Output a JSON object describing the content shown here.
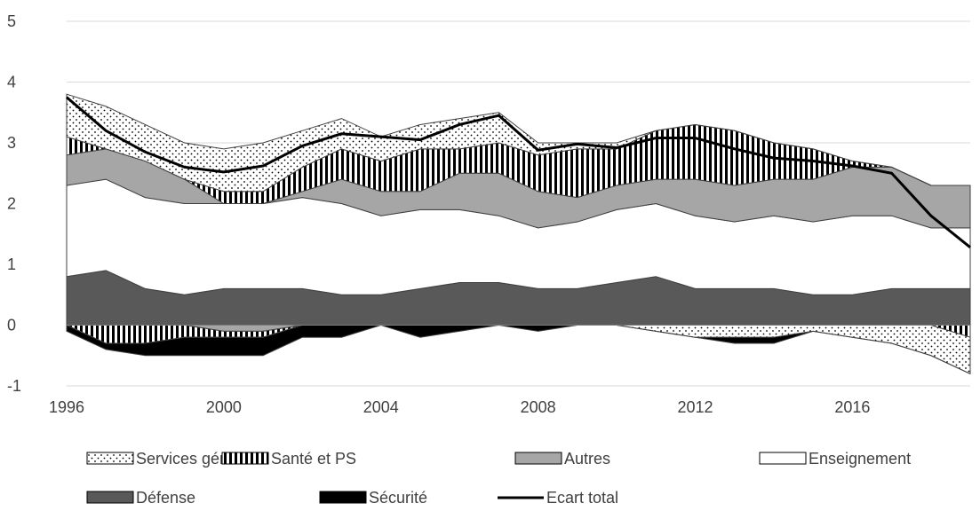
{
  "chart_data": {
    "type": "area",
    "title": "",
    "xlabel": "",
    "ylabel": "",
    "x": [
      1996,
      1997,
      1998,
      1999,
      2000,
      2001,
      2002,
      2003,
      2004,
      2005,
      2006,
      2007,
      2008,
      2009,
      2010,
      2011,
      2012,
      2013,
      2014,
      2015,
      2016,
      2017,
      2018,
      2019
    ],
    "xlim": [
      1996,
      2019
    ],
    "ylim": [
      -1,
      5
    ],
    "x_tick_labels": [
      "1996",
      "2000",
      "2004",
      "2008",
      "2012",
      "2016"
    ],
    "y_tick_labels": [
      "-1",
      "0",
      "1",
      "2",
      "3",
      "4",
      "5"
    ],
    "grid": "horizontal",
    "legend_position": "bottom",
    "series": [
      {
        "name": "Services généraux",
        "values": [
          0.7,
          0.7,
          0.6,
          0.6,
          0.7,
          0.8,
          0.6,
          0.5,
          0.4,
          0.4,
          0.5,
          0.5,
          0.2,
          0.1,
          0.1,
          0.0,
          0.0,
          0.0,
          0.0,
          0.0,
          0.0,
          0.0,
          0.0,
          0.0
        ],
        "neg_values": [
          0,
          0,
          0,
          0,
          0,
          0,
          0,
          0,
          0,
          0,
          0,
          0,
          0,
          0,
          0,
          -0.1,
          -0.2,
          -0.2,
          -0.2,
          -0.1,
          -0.2,
          -0.3,
          -0.5,
          -0.6
        ]
      },
      {
        "name": "Santé et PS",
        "values": [
          0.3,
          0.0,
          0.0,
          0.0,
          0.2,
          0.2,
          0.4,
          0.5,
          0.5,
          0.7,
          0.4,
          0.5,
          0.6,
          0.8,
          0.6,
          0.8,
          0.9,
          0.9,
          0.6,
          0.5,
          0.1,
          0.0,
          0.0,
          0.0
        ],
        "neg_values": [
          0,
          -0.3,
          -0.3,
          -0.2,
          -0.1,
          -0.1,
          0,
          0,
          0,
          0,
          0,
          0,
          0,
          0,
          0,
          0,
          0,
          0,
          0,
          0,
          0,
          0,
          0,
          -0.2
        ]
      },
      {
        "name": "Autres",
        "values": [
          0.5,
          0.5,
          0.6,
          0.4,
          0.0,
          0.0,
          0.1,
          0.4,
          0.4,
          0.3,
          0.6,
          0.7,
          0.6,
          0.4,
          0.4,
          0.4,
          0.6,
          0.6,
          0.6,
          0.7,
          0.8,
          0.8,
          0.7,
          0.7
        ],
        "neg_values": [
          0,
          0,
          0,
          0,
          -0.1,
          -0.1,
          0,
          0,
          0,
          0,
          0,
          0,
          0,
          0,
          0,
          0,
          0,
          0,
          0,
          0,
          0,
          0,
          0,
          0
        ]
      },
      {
        "name": "Enseignement",
        "values": [
          1.5,
          1.5,
          1.5,
          1.5,
          1.4,
          1.4,
          1.5,
          1.5,
          1.3,
          1.3,
          1.2,
          1.1,
          1.0,
          1.1,
          1.2,
          1.2,
          1.2,
          1.1,
          1.2,
          1.2,
          1.3,
          1.2,
          1.0,
          1.0
        ],
        "neg_values": [
          0,
          0,
          0,
          0,
          0,
          0,
          0,
          0,
          0,
          0,
          0,
          0,
          0,
          0,
          0,
          0,
          0,
          0,
          0,
          0,
          0,
          0,
          0,
          0
        ]
      },
      {
        "name": "Défense",
        "values": [
          0.8,
          0.9,
          0.6,
          0.5,
          0.6,
          0.6,
          0.6,
          0.5,
          0.5,
          0.6,
          0.7,
          0.7,
          0.6,
          0.6,
          0.7,
          0.8,
          0.6,
          0.6,
          0.6,
          0.5,
          0.5,
          0.6,
          0.6,
          0.6
        ],
        "neg_values": [
          0,
          0,
          0,
          0,
          0,
          0,
          0,
          0,
          0,
          0,
          0,
          0,
          0,
          0,
          0,
          0,
          0,
          0,
          0,
          0,
          0,
          0,
          0,
          0
        ]
      },
      {
        "name": "Sécurité",
        "values": [
          0,
          0,
          0,
          0,
          0,
          0,
          0,
          0,
          0,
          0,
          0,
          0,
          0,
          0,
          0,
          0,
          0,
          0,
          0,
          0,
          0,
          0,
          0,
          0
        ],
        "neg_values": [
          -0.1,
          -0.1,
          -0.2,
          -0.3,
          -0.3,
          -0.3,
          -0.2,
          -0.2,
          0,
          -0.2,
          -0.1,
          0,
          -0.1,
          0,
          0,
          0,
          0,
          -0.1,
          -0.1,
          0,
          0,
          0,
          0,
          0
        ]
      },
      {
        "name": "Ecart total",
        "type": "line",
        "values": [
          3.75,
          3.2,
          2.85,
          2.6,
          2.52,
          2.62,
          2.95,
          3.15,
          3.1,
          3.05,
          3.3,
          3.45,
          2.88,
          2.98,
          2.92,
          3.08,
          3.08,
          2.9,
          2.75,
          2.7,
          2.62,
          2.5,
          1.8,
          1.28
        ]
      }
    ],
    "colors": {
      "Services généraux": "#ffffff",
      "Santé et PS": "#ffffff",
      "Autres": "#a6a6a6",
      "Enseignement": "#ffffff",
      "Défense": "#595959",
      "Sécurité": "#000000",
      "Ecart total": "#000000"
    },
    "legend": [
      {
        "label": "Services généraux",
        "pattern": "dots"
      },
      {
        "label": "Santé et PS",
        "pattern": "vstripes"
      },
      {
        "label": "Autres",
        "pattern": "solid-lightgray"
      },
      {
        "label": "Enseignement",
        "pattern": "solid-white"
      },
      {
        "label": "Défense",
        "pattern": "solid-darkgray"
      },
      {
        "label": "Sécurité",
        "pattern": "solid-black"
      },
      {
        "label": "Ecart total",
        "pattern": "line"
      }
    ]
  }
}
